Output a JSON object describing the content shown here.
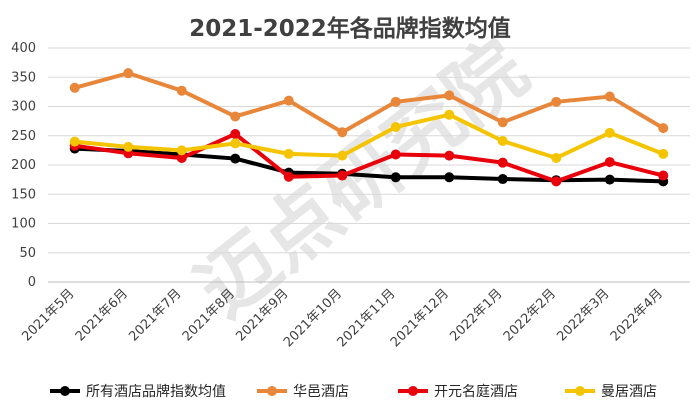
{
  "chart_data": {
    "type": "line",
    "title": "2021-2022年各品牌指数均值",
    "categories": [
      "2021年5月",
      "2021年6月",
      "2021年7月",
      "2021年8月",
      "2021年9月",
      "2021年10月",
      "2021年11月",
      "2021年12月",
      "2022年1月",
      "2022年2月",
      "2022年3月",
      "2022年4月"
    ],
    "ylim": [
      0,
      400
    ],
    "yticks": [
      0,
      50,
      100,
      150,
      200,
      250,
      300,
      350,
      400
    ],
    "grid": true,
    "legend_position": "bottom",
    "watermark": "迈点研究院",
    "series": [
      {
        "name": "所有酒店品牌指数均值",
        "color": "#000000",
        "values": [
          228,
          224,
          218,
          211,
          187,
          185,
          179,
          179,
          176,
          174,
          175,
          172
        ]
      },
      {
        "name": "华邑酒店",
        "color": "#E8863A",
        "values": [
          332,
          357,
          327,
          283,
          310,
          256,
          308,
          319,
          273,
          308,
          317,
          263
        ]
      },
      {
        "name": "开元名庭酒店",
        "color": "#E8000B",
        "values": [
          233,
          220,
          212,
          253,
          180,
          182,
          218,
          216,
          204,
          172,
          205,
          182
        ]
      },
      {
        "name": "曼居酒店",
        "color": "#F5C400",
        "values": [
          240,
          231,
          225,
          237,
          219,
          216,
          265,
          286,
          241,
          212,
          255,
          219
        ]
      }
    ]
  }
}
